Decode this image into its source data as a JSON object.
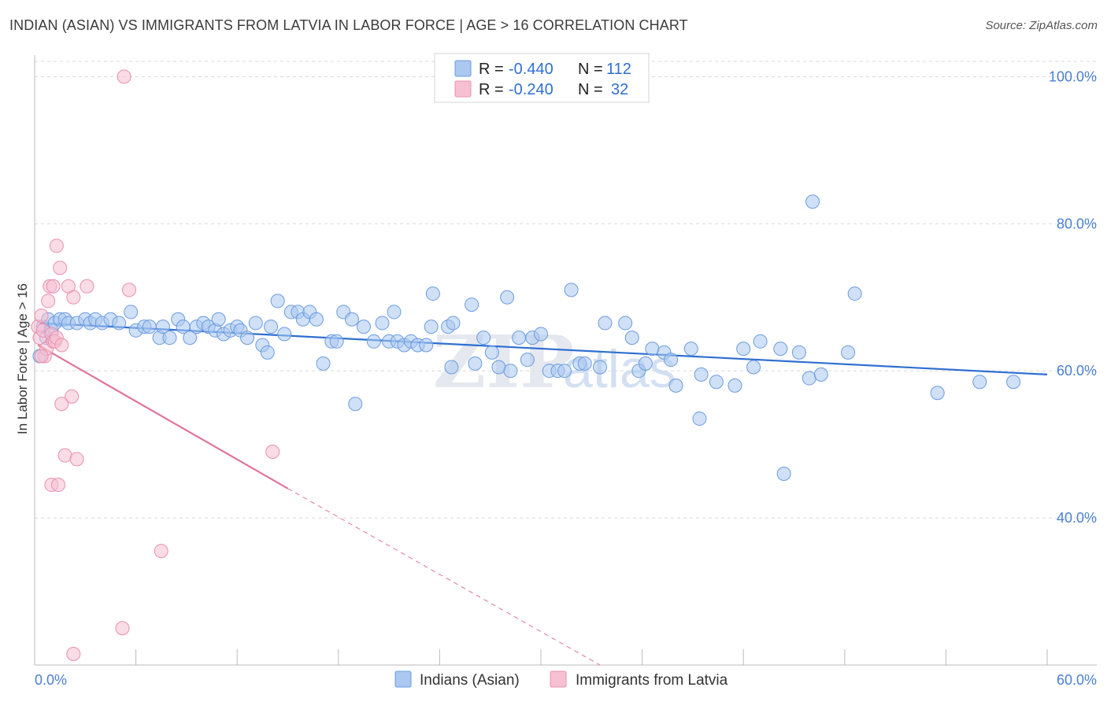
{
  "header": {
    "title": "INDIAN (ASIAN) VS IMMIGRANTS FROM LATVIA IN LABOR FORCE | AGE > 16 CORRELATION CHART",
    "source": "Source: ZipAtlas.com"
  },
  "watermark": {
    "zip": "ZIP",
    "atlas": "atlas"
  },
  "colors": {
    "blue_fill": "#aac8f0",
    "blue_stroke": "#6b9be0",
    "blue_line": "#2f6fd1",
    "pink_fill": "#f6c0d2",
    "pink_stroke": "#e98fad",
    "pink_line": "#e0739a",
    "axis_label": "#4a7fd0",
    "grid": "#d8d8d8"
  },
  "chart_data": {
    "type": "scatter",
    "title": "INDIAN (ASIAN) VS IMMIGRANTS FROM LATVIA IN LABOR FORCE | AGE > 16 CORRELATION CHART",
    "xlabel": "",
    "ylabel": "In Labor Force | Age > 16",
    "xlim": [
      0,
      60
    ],
    "ylim": [
      20,
      104
    ],
    "x_tick_labels": {
      "left": "0.0%",
      "right": "60.0%"
    },
    "y_ticks": [
      {
        "value": 100,
        "label": "100.0%"
      },
      {
        "value": 80,
        "label": "80.0%"
      },
      {
        "value": 60,
        "label": "60.0%"
      },
      {
        "value": 40,
        "label": "40.0%"
      }
    ],
    "legend": {
      "rows": [
        {
          "r_label": "R =",
          "r_value": "-0.440",
          "n_label": "N =",
          "n_value": "112"
        },
        {
          "r_label": "R =",
          "r_value": "-0.240",
          "n_label": "N =",
          "n_value": " 32"
        }
      ]
    },
    "series": [
      {
        "name": "Indians (Asian)",
        "color": "#6b9be0",
        "trend": {
          "x1": 0.3,
          "y1": 66.5,
          "x2": 60,
          "y2": 59.5
        },
        "points": [
          [
            0.3,
            62
          ],
          [
            0.5,
            66
          ],
          [
            0.7,
            64.5
          ],
          [
            0.8,
            67
          ],
          [
            1.0,
            65.5
          ],
          [
            1.2,
            66.5
          ],
          [
            1.5,
            67
          ],
          [
            1.8,
            67
          ],
          [
            2.0,
            66.5
          ],
          [
            2.5,
            66.5
          ],
          [
            3.0,
            67
          ],
          [
            3.3,
            66.5
          ],
          [
            3.6,
            67
          ],
          [
            4.0,
            66.5
          ],
          [
            4.5,
            67
          ],
          [
            5.0,
            66.5
          ],
          [
            5.7,
            68
          ],
          [
            6.0,
            65.5
          ],
          [
            6.5,
            66
          ],
          [
            6.8,
            66
          ],
          [
            7.4,
            64.5
          ],
          [
            7.6,
            66
          ],
          [
            8.0,
            64.5
          ],
          [
            8.5,
            67
          ],
          [
            8.8,
            66
          ],
          [
            9.2,
            64.5
          ],
          [
            9.6,
            66
          ],
          [
            10.0,
            66.5
          ],
          [
            10.3,
            66
          ],
          [
            10.7,
            65.5
          ],
          [
            10.9,
            67
          ],
          [
            11.2,
            65
          ],
          [
            11.6,
            65.5
          ],
          [
            12.0,
            66
          ],
          [
            12.2,
            65.5
          ],
          [
            12.6,
            64.5
          ],
          [
            13.1,
            66.5
          ],
          [
            13.5,
            63.5
          ],
          [
            13.8,
            62.5
          ],
          [
            14.0,
            66
          ],
          [
            14.4,
            69.5
          ],
          [
            14.8,
            65
          ],
          [
            15.2,
            68
          ],
          [
            15.6,
            68
          ],
          [
            15.9,
            67
          ],
          [
            16.3,
            68
          ],
          [
            16.7,
            67
          ],
          [
            17.1,
            61
          ],
          [
            17.6,
            64
          ],
          [
            17.9,
            64
          ],
          [
            18.3,
            68
          ],
          [
            18.8,
            67
          ],
          [
            19.0,
            55.5
          ],
          [
            19.5,
            66
          ],
          [
            20.1,
            64
          ],
          [
            20.6,
            66.5
          ],
          [
            21.0,
            64
          ],
          [
            21.3,
            68
          ],
          [
            21.5,
            64
          ],
          [
            21.9,
            63.5
          ],
          [
            22.3,
            64
          ],
          [
            22.7,
            63.5
          ],
          [
            23.2,
            63.5
          ],
          [
            23.5,
            66
          ],
          [
            23.6,
            70.5
          ],
          [
            24.5,
            66
          ],
          [
            24.7,
            60.5
          ],
          [
            24.8,
            66.5
          ],
          [
            25.9,
            69
          ],
          [
            26.1,
            61
          ],
          [
            26.6,
            64.5
          ],
          [
            27.1,
            62.5
          ],
          [
            27.5,
            60.5
          ],
          [
            28.0,
            70
          ],
          [
            28.2,
            60
          ],
          [
            28.7,
            64.5
          ],
          [
            29.2,
            61.5
          ],
          [
            29.5,
            64.5
          ],
          [
            30.0,
            65
          ],
          [
            30.5,
            60
          ],
          [
            31.0,
            60
          ],
          [
            31.4,
            60
          ],
          [
            31.8,
            71
          ],
          [
            32.3,
            61
          ],
          [
            32.6,
            61
          ],
          [
            33.5,
            60.5
          ],
          [
            33.8,
            66.5
          ],
          [
            35.0,
            66.5
          ],
          [
            35.4,
            64.5
          ],
          [
            35.8,
            60
          ],
          [
            36.2,
            61
          ],
          [
            36.6,
            63
          ],
          [
            37.3,
            62.5
          ],
          [
            37.7,
            61.5
          ],
          [
            38.0,
            58
          ],
          [
            38.9,
            63
          ],
          [
            39.5,
            59.5
          ],
          [
            39.4,
            53.5
          ],
          [
            40.4,
            58.5
          ],
          [
            41.5,
            58
          ],
          [
            42.0,
            63
          ],
          [
            42.6,
            60.5
          ],
          [
            43.0,
            64
          ],
          [
            44.2,
            63
          ],
          [
            44.4,
            46
          ],
          [
            45.3,
            62.5
          ],
          [
            45.9,
            59
          ],
          [
            46.6,
            59.5
          ],
          [
            46.1,
            83
          ],
          [
            48.2,
            62.5
          ],
          [
            48.6,
            70.5
          ],
          [
            53.5,
            57
          ],
          [
            56.0,
            58.5
          ],
          [
            58.0,
            58.5
          ]
        ]
      },
      {
        "name": "Immigrants from Latvia",
        "color": "#e98fad",
        "trend": {
          "x1": 0.2,
          "y1": 63.5,
          "x2": 15,
          "y2": 44,
          "x_dash_end": 33.5,
          "y_dash_end": 20
        },
        "points": [
          [
            0.2,
            66
          ],
          [
            0.3,
            64.5
          ],
          [
            0.4,
            67.5
          ],
          [
            0.5,
            65.5
          ],
          [
            0.6,
            62
          ],
          [
            0.7,
            63
          ],
          [
            0.8,
            69.5
          ],
          [
            1.0,
            65
          ],
          [
            1.1,
            64
          ],
          [
            1.2,
            64
          ],
          [
            1.3,
            64.5
          ],
          [
            0.9,
            71.5
          ],
          [
            1.1,
            71.5
          ],
          [
            1.3,
            77
          ],
          [
            1.5,
            74
          ],
          [
            1.6,
            63.5
          ],
          [
            2.0,
            71.5
          ],
          [
            2.3,
            70
          ],
          [
            3.1,
            71.5
          ],
          [
            5.6,
            71
          ],
          [
            2.2,
            56.5
          ],
          [
            1.6,
            55.5
          ],
          [
            1.8,
            48.5
          ],
          [
            2.5,
            48
          ],
          [
            1.0,
            44.5
          ],
          [
            1.4,
            44.5
          ],
          [
            7.5,
            35.5
          ],
          [
            5.2,
            25
          ],
          [
            2.3,
            21.5
          ],
          [
            14.1,
            49
          ],
          [
            5.3,
            100
          ],
          [
            0.4,
            62
          ]
        ]
      }
    ]
  }
}
